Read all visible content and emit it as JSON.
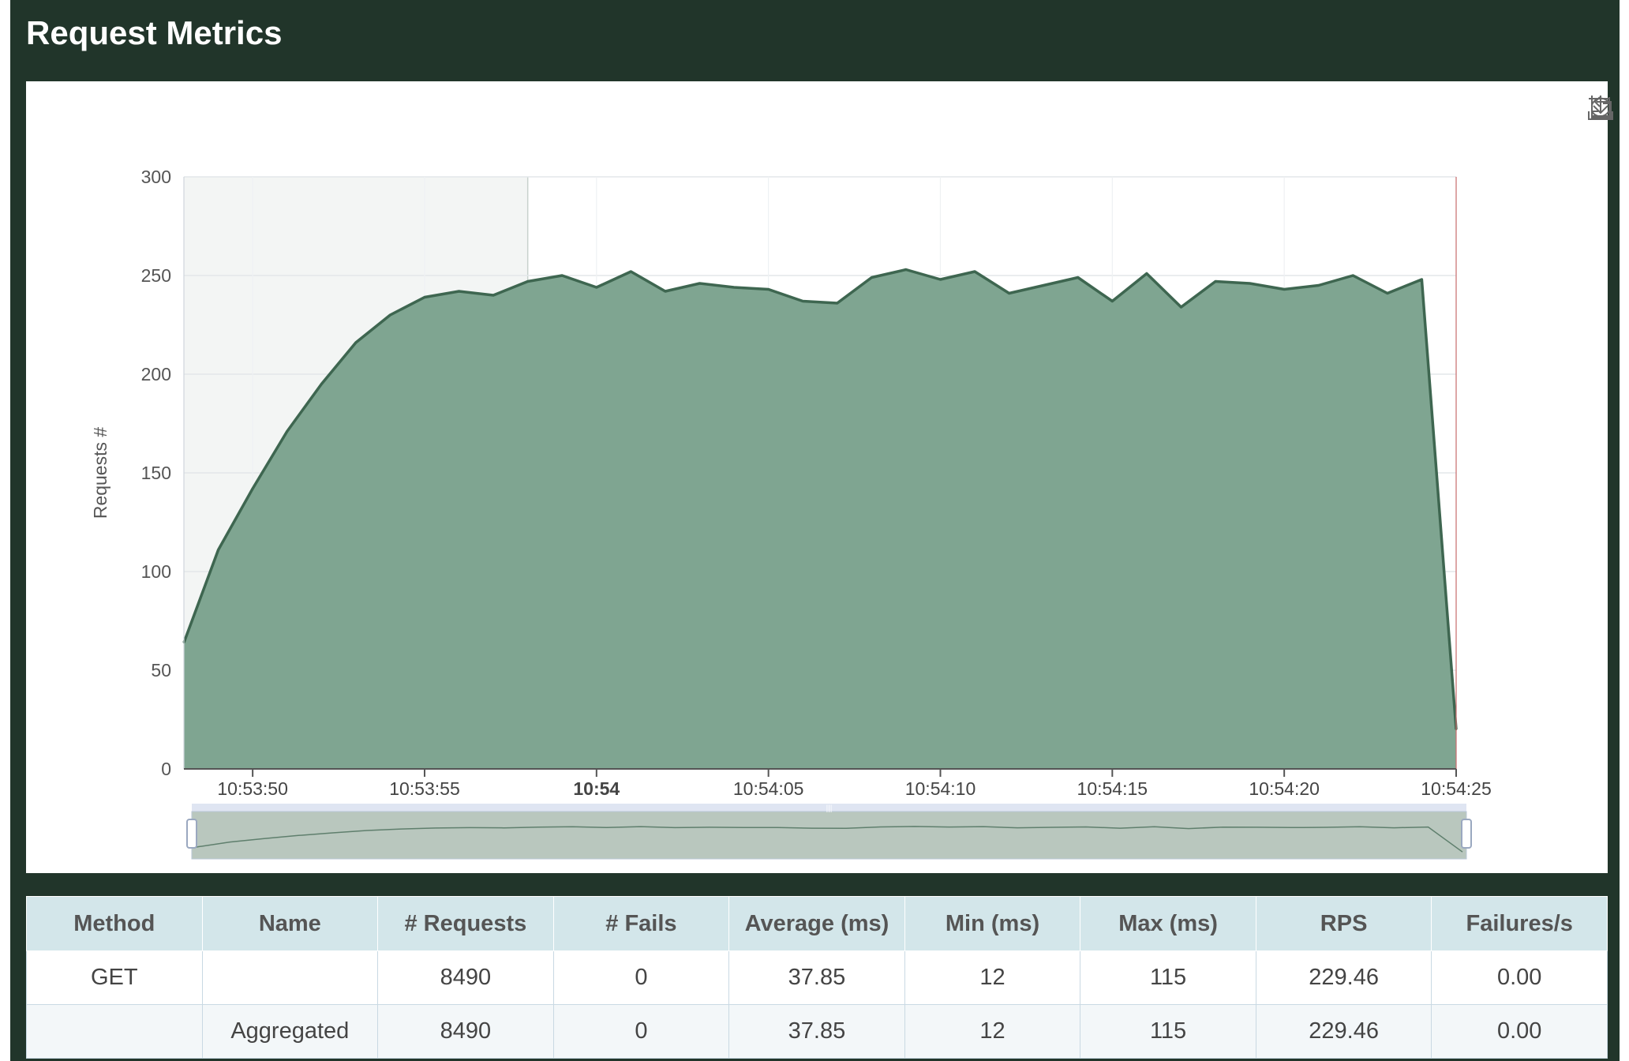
{
  "page": {
    "title": "Request Metrics"
  },
  "toolbox": {
    "icons": [
      "zoom-area-icon",
      "zoom-reset-icon",
      "restore-icon",
      "download-icon"
    ]
  },
  "chart_data": {
    "type": "area",
    "ylabel": "Requests #",
    "ylim": [
      0,
      300
    ],
    "yticks": [
      0,
      50,
      100,
      150,
      200,
      250,
      300
    ],
    "xlim": [
      "10:53:48",
      "10:54:25"
    ],
    "xticks": [
      {
        "time": "10:53:50",
        "label": "10:53:50",
        "bold": false
      },
      {
        "time": "10:53:55",
        "label": "10:53:55",
        "bold": false
      },
      {
        "time": "10:54:00",
        "label": "10:54",
        "bold": true
      },
      {
        "time": "10:54:05",
        "label": "10:54:05",
        "bold": false
      },
      {
        "time": "10:54:10",
        "label": "10:54:10",
        "bold": false
      },
      {
        "time": "10:54:15",
        "label": "10:54:15",
        "bold": false
      },
      {
        "time": "10:54:20",
        "label": "10:54:20",
        "bold": false
      },
      {
        "time": "10:54:25",
        "label": "10:54:25",
        "bold": false
      }
    ],
    "grid": true,
    "highlight_range": [
      "10:53:48",
      "10:53:58"
    ],
    "series": [
      {
        "color": "#3e6650",
        "fill": "#7fa591",
        "x": [
          "10:53:48",
          "10:53:49",
          "10:53:50",
          "10:53:51",
          "10:53:52",
          "10:53:53",
          "10:53:54",
          "10:53:55",
          "10:53:56",
          "10:53:57",
          "10:53:58",
          "10:53:59",
          "10:54:00",
          "10:54:01",
          "10:54:02",
          "10:54:03",
          "10:54:04",
          "10:54:05",
          "10:54:06",
          "10:54:07",
          "10:54:08",
          "10:54:09",
          "10:54:10",
          "10:54:11",
          "10:54:12",
          "10:54:13",
          "10:54:14",
          "10:54:15",
          "10:54:16",
          "10:54:17",
          "10:54:18",
          "10:54:19",
          "10:54:20",
          "10:54:21",
          "10:54:22",
          "10:54:23",
          "10:54:24",
          "10:54:25"
        ],
        "values": [
          64,
          111,
          142,
          171,
          195,
          216,
          230,
          239,
          242,
          240,
          247,
          250,
          244,
          252,
          242,
          246,
          244,
          243,
          237,
          236,
          249,
          253,
          248,
          252,
          241,
          245,
          249,
          237,
          251,
          234,
          247,
          246,
          243,
          245,
          250,
          241,
          248,
          20
        ]
      }
    ]
  },
  "table": {
    "headers": [
      "Method",
      "Name",
      "# Requests",
      "# Fails",
      "Average (ms)",
      "Min (ms)",
      "Max (ms)",
      "RPS",
      "Failures/s"
    ],
    "rows": [
      [
        "GET",
        "",
        "8490",
        "0",
        "37.85",
        "12",
        "115",
        "229.46",
        "0.00"
      ],
      [
        "",
        "Aggregated",
        "8490",
        "0",
        "37.85",
        "12",
        "115",
        "229.46",
        "0.00"
      ]
    ]
  }
}
